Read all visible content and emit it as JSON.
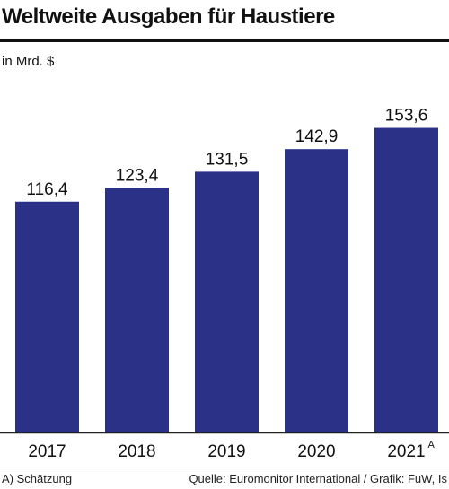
{
  "chart_data": {
    "type": "bar",
    "title": "Weltweite Ausgaben für Haustiere",
    "unit_label": "in Mrd. $",
    "categories": [
      "2017",
      "2018",
      "2019",
      "2020",
      "2021"
    ],
    "category_marks": [
      "",
      "",
      "",
      "",
      "A"
    ],
    "values": [
      116.4,
      123.4,
      131.5,
      142.9,
      153.6
    ],
    "value_labels": [
      "116,4",
      "123,4",
      "131,5",
      "142,9",
      "153,6"
    ],
    "ylim": [
      0,
      160
    ],
    "grid": false,
    "legend": "none",
    "bar_color": "#2b3187",
    "text_color": "#111111"
  },
  "footer": {
    "footnote": "A) Schätzung",
    "source": "Quelle: Euromonitor International / Grafik: FuW, Is"
  }
}
